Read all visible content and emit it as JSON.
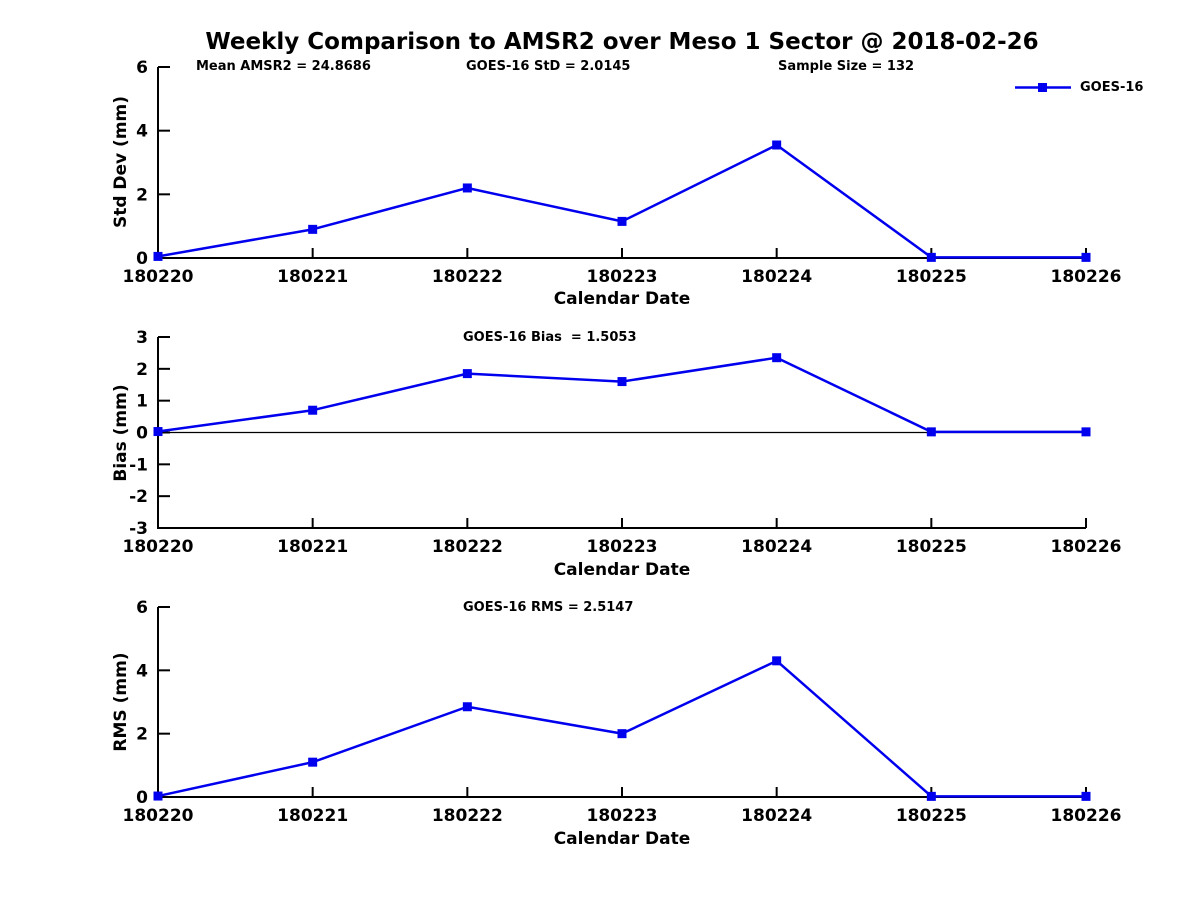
{
  "title": "Weekly Comparison to AMSR2 over Meso 1 Sector @ 2018-02-26",
  "colors": {
    "line": "#0000ee",
    "axis": "#000000",
    "text": "#000000",
    "background": "#ffffff"
  },
  "legend": {
    "label": "GOES-16"
  },
  "stats": {
    "mean_amsr2": "Mean AMSR2 = 24.8686",
    "goes16_std": "GOES-16 StD = 2.0145",
    "sample_size": "Sample Size = 132"
  },
  "chart_data": [
    {
      "type": "line",
      "name": "std-dev",
      "categories": [
        "180220",
        "180221",
        "180222",
        "180223",
        "180224",
        "180225",
        "180226"
      ],
      "series": [
        {
          "name": "GOES-16",
          "values": [
            0.05,
            0.9,
            2.2,
            1.15,
            3.55,
            0.02,
            0.02
          ]
        }
      ],
      "xlabel": "Calendar Date",
      "ylabel": "Std Dev (mm)",
      "ylim": [
        0,
        6
      ],
      "yticks": [
        0,
        2,
        4,
        6
      ],
      "grid": false,
      "zero_line": false,
      "legend_position": "top-right"
    },
    {
      "type": "line",
      "name": "bias",
      "subtitle": "GOES-16 Bias  = 1.5053",
      "categories": [
        "180220",
        "180221",
        "180222",
        "180223",
        "180224",
        "180225",
        "180226"
      ],
      "series": [
        {
          "name": "GOES-16",
          "values": [
            0.03,
            0.7,
            1.85,
            1.6,
            2.35,
            0.02,
            0.02
          ]
        }
      ],
      "xlabel": "Calendar Date",
      "ylabel": "Bias (mm)",
      "ylim": [
        -3,
        3
      ],
      "yticks": [
        -3,
        -2,
        -1,
        0,
        1,
        2,
        3
      ],
      "grid": false,
      "zero_line": true
    },
    {
      "type": "line",
      "name": "rms",
      "subtitle": "GOES-16 RMS = 2.5147",
      "categories": [
        "180220",
        "180221",
        "180222",
        "180223",
        "180224",
        "180225",
        "180226"
      ],
      "series": [
        {
          "name": "GOES-16",
          "values": [
            0.03,
            1.1,
            2.85,
            2.0,
            4.3,
            0.02,
            0.02
          ]
        }
      ],
      "xlabel": "Calendar Date",
      "ylabel": "RMS (mm)",
      "ylim": [
        0,
        6
      ],
      "yticks": [
        0,
        2,
        4,
        6
      ],
      "grid": false,
      "zero_line": false
    }
  ]
}
